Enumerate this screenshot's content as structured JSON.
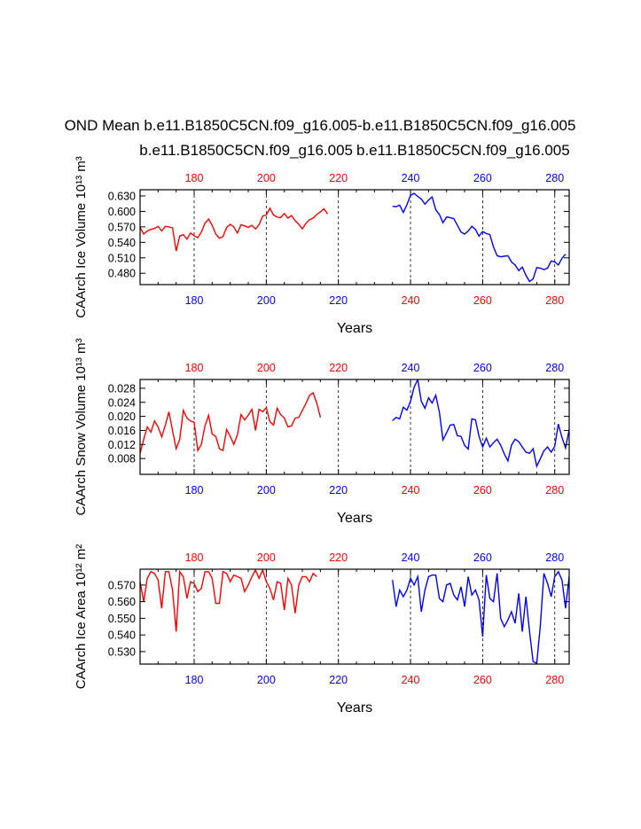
{
  "title": "OND Mean b.e11.B1850C5CN.f09_g16.005-b.e11.B1850C5CN.f09_g16.005",
  "legend": {
    "left": {
      "label": "b.e11.B1850C5CN.f09_g16.005",
      "color": "#ff0000"
    },
    "right": {
      "label": "b.e11.B1850C5CN.f09_g16.005",
      "color": "#0000ff"
    }
  },
  "colors": {
    "series_red": "#ff0000",
    "series_blue": "#0000ff",
    "axes": "#000000"
  },
  "chart_data": [
    {
      "type": "line",
      "ylabel": "CAArch Ice Volume 10¹³ m³",
      "xlabel": "Years",
      "xlim": [
        165,
        284
      ],
      "ylim": [
        0.458,
        0.642
      ],
      "yticks": [
        "0.630",
        "0.600",
        "0.570",
        "0.540",
        "0.510",
        "0.480"
      ],
      "xticks": [
        "180",
        "200",
        "220",
        "240",
        "260",
        "280"
      ],
      "top_xticks": [
        "180",
        "200",
        "220",
        "240",
        "260",
        "280"
      ],
      "grid": "dashed vertical lines at 180, 200, 220, 240, 260, 280",
      "series": [
        {
          "x_start": 165,
          "values": [
            0.569,
            0.556,
            0.562,
            0.565,
            0.567,
            0.571,
            0.562,
            0.571,
            0.57,
            0.568,
            0.523,
            0.552,
            0.555,
            0.546,
            0.558,
            0.553,
            0.549,
            0.56,
            0.577,
            0.585,
            0.573,
            0.556,
            0.548,
            0.551,
            0.569,
            0.575,
            0.57,
            0.558,
            0.574,
            0.572,
            0.569,
            0.573,
            0.566,
            0.574,
            0.591,
            0.593,
            0.606,
            0.593,
            0.589,
            0.588,
            0.596,
            0.587,
            0.592,
            0.582,
            0.575,
            0.566,
            0.577,
            0.584,
            0.587,
            0.594,
            0.599,
            0.605,
            0.595
          ]
        },
        {
          "x_start": 235,
          "values": [
            0.61,
            0.609,
            0.612,
            0.598,
            0.613,
            0.631,
            0.635,
            0.629,
            0.624,
            0.614,
            0.622,
            0.628,
            0.603,
            0.594,
            0.578,
            0.589,
            0.588,
            0.586,
            0.573,
            0.56,
            0.556,
            0.562,
            0.571,
            0.565,
            0.552,
            0.561,
            0.557,
            0.555,
            0.531,
            0.514,
            0.512,
            0.513,
            0.514,
            0.502,
            0.496,
            0.485,
            0.492,
            0.476,
            0.464,
            0.469,
            0.491,
            0.49,
            0.487,
            0.49,
            0.504,
            0.502,
            0.496,
            0.509,
            0.517
          ]
        }
      ]
    },
    {
      "type": "line",
      "ylabel": "CAArch Snow Volume 10¹³ m³",
      "xlabel": "Years",
      "xlim": [
        165,
        284
      ],
      "ylim": [
        0.0035,
        0.0305
      ],
      "yticks": [
        "0.028",
        "0.024",
        "0.020",
        "0.016",
        "0.012",
        "0.008"
      ],
      "xticks": [
        "180",
        "200",
        "220",
        "240",
        "260",
        "280"
      ],
      "top_xticks": [
        "180",
        "200",
        "220",
        "240",
        "260",
        "280"
      ],
      "grid": "dashed vertical lines at 180, 200, 220, 240, 260, 280",
      "series": [
        {
          "x_start": 165,
          "values": [
            0.0095,
            0.0135,
            0.017,
            0.0155,
            0.0187,
            0.017,
            0.0142,
            0.0175,
            0.0213,
            0.016,
            0.0108,
            0.0135,
            0.0217,
            0.0195,
            0.0187,
            0.0183,
            0.0103,
            0.012,
            0.0173,
            0.0203,
            0.015,
            0.0143,
            0.0108,
            0.0103,
            0.0163,
            0.0143,
            0.012,
            0.0148,
            0.0205,
            0.019,
            0.0203,
            0.022,
            0.016,
            0.022,
            0.0213,
            0.0225,
            0.0185,
            0.0175,
            0.0223,
            0.0205,
            0.0195,
            0.017,
            0.0173,
            0.0195,
            0.0197,
            0.0217,
            0.0237,
            0.026,
            0.0267,
            0.0238,
            0.0197
          ]
        },
        {
          "x_start": 235,
          "values": [
            0.0188,
            0.0197,
            0.0193,
            0.0226,
            0.0218,
            0.0243,
            0.0283,
            0.0305,
            0.0243,
            0.0223,
            0.0253,
            0.0238,
            0.026,
            0.0212,
            0.0133,
            0.0153,
            0.0175,
            0.0177,
            0.0145,
            0.0143,
            0.0117,
            0.0107,
            0.0193,
            0.019,
            0.0143,
            0.0113,
            0.0138,
            0.0113,
            0.0125,
            0.0135,
            0.0118,
            0.0093,
            0.0073,
            0.0118,
            0.0135,
            0.0128,
            0.0113,
            0.0098,
            0.0095,
            0.0108,
            0.0058,
            0.008,
            0.0102,
            0.0113,
            0.0098,
            0.0115,
            0.0178,
            0.014,
            0.011,
            0.0163,
            0.0175
          ]
        }
      ]
    },
    {
      "type": "line",
      "ylabel": "CAArch Ice Area 10¹² m²",
      "xlabel": "Years",
      "xlim": [
        165,
        284
      ],
      "ylim": [
        0.5225,
        0.5795
      ],
      "yticks": [
        "0.570",
        "0.560",
        "0.550",
        "0.540",
        "0.530"
      ],
      "xticks": [
        "180",
        "200",
        "220",
        "240",
        "260",
        "280"
      ],
      "top_xticks": [
        "180",
        "200",
        "220",
        "240",
        "260",
        "280"
      ],
      "grid": "dashed vertical lines at 180, 200, 220, 240, 260, 280",
      "series": [
        {
          "x_start": 165,
          "values": [
            0.572,
            0.56,
            0.574,
            0.578,
            0.577,
            0.573,
            0.556,
            0.578,
            0.578,
            0.567,
            0.542,
            0.578,
            0.575,
            0.562,
            0.572,
            0.571,
            0.566,
            0.568,
            0.578,
            0.578,
            0.574,
            0.559,
            0.559,
            0.578,
            0.577,
            0.572,
            0.576,
            0.575,
            0.574,
            0.566,
            0.57,
            0.575,
            0.579,
            0.574,
            0.579,
            0.572,
            0.568,
            0.561,
            0.572,
            0.571,
            0.555,
            0.574,
            0.57,
            0.553,
            0.57,
            0.575,
            0.575,
            0.572,
            0.577,
            0.575
          ]
        },
        {
          "x_start": 235,
          "values": [
            0.573,
            0.557,
            0.567,
            0.563,
            0.567,
            0.574,
            0.57,
            0.575,
            0.554,
            0.567,
            0.575,
            0.576,
            0.576,
            0.562,
            0.56,
            0.57,
            0.571,
            0.564,
            0.561,
            0.569,
            0.557,
            0.575,
            0.564,
            0.567,
            0.561,
            0.539,
            0.576,
            0.562,
            0.56,
            0.577,
            0.55,
            0.545,
            0.549,
            0.554,
            0.547,
            0.565,
            0.542,
            0.563,
            0.542,
            0.524,
            0.523,
            0.546,
            0.577,
            0.571,
            0.563,
            0.575,
            0.578,
            0.573,
            0.556,
            0.575,
            0.576
          ]
        }
      ]
    }
  ]
}
